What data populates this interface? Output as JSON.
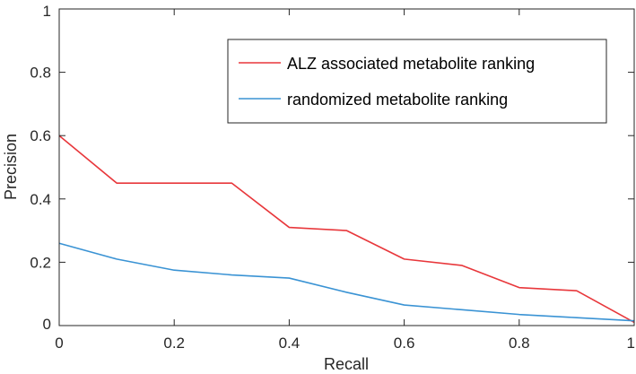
{
  "chart_data": {
    "type": "line",
    "xlabel": "Recall",
    "ylabel": "Precision",
    "xlim": [
      0,
      1
    ],
    "ylim": [
      0,
      1
    ],
    "x_ticks": [
      0,
      0.2,
      0.4,
      0.6,
      0.8,
      1
    ],
    "x_tick_labels": [
      "0",
      "0.2",
      "0.4",
      "0.6",
      "0.8",
      "1"
    ],
    "y_ticks": [
      0,
      0.2,
      0.4,
      0.6,
      0.8,
      1
    ],
    "y_tick_labels": [
      "0",
      "0.2",
      "0.4",
      "0.6",
      "0.8",
      "1"
    ],
    "grid": false,
    "legend_position": "top-right",
    "series": [
      {
        "name": "ALZ associated metabolite ranking",
        "color": "#e8373b",
        "x": [
          0,
          0.1,
          0.2,
          0.3,
          0.4,
          0.5,
          0.6,
          0.7,
          0.8,
          0.9,
          1
        ],
        "y": [
          0.6,
          0.45,
          0.45,
          0.45,
          0.31,
          0.3,
          0.21,
          0.19,
          0.12,
          0.11,
          0.01
        ]
      },
      {
        "name": "randomized metabolite ranking",
        "color": "#3a93d4",
        "x": [
          0,
          0.1,
          0.2,
          0.3,
          0.4,
          0.5,
          0.6,
          0.7,
          0.8,
          0.9,
          1
        ],
        "y": [
          0.26,
          0.21,
          0.175,
          0.16,
          0.15,
          0.105,
          0.065,
          0.05,
          0.035,
          0.025,
          0.015
        ]
      }
    ]
  }
}
